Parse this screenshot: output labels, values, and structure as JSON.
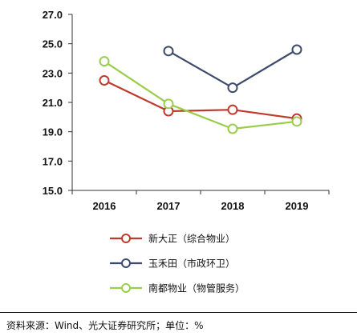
{
  "chart_data": {
    "type": "line",
    "x": [
      "2016",
      "2017",
      "2018",
      "2019"
    ],
    "yticks": [
      "15.0",
      "17.0",
      "19.0",
      "21.0",
      "23.0",
      "25.0",
      "27.0"
    ],
    "ylim": [
      15,
      27
    ],
    "series": [
      {
        "name": "新大正（综合物业）",
        "color": "#c0392b",
        "values": [
          22.5,
          20.4,
          20.5,
          19.9
        ]
      },
      {
        "name": "玉禾田（市政环卫）",
        "color": "#3d4a6b",
        "values": [
          null,
          24.5,
          22.0,
          24.6
        ]
      },
      {
        "name": "南都物业（物管服务）",
        "color": "#9acd4a",
        "values": [
          23.8,
          20.9,
          19.2,
          19.7
        ]
      }
    ],
    "grid": false,
    "legend_position": "bottom"
  },
  "source": "资料来源：Wind、光大证券研究所；单位：%"
}
